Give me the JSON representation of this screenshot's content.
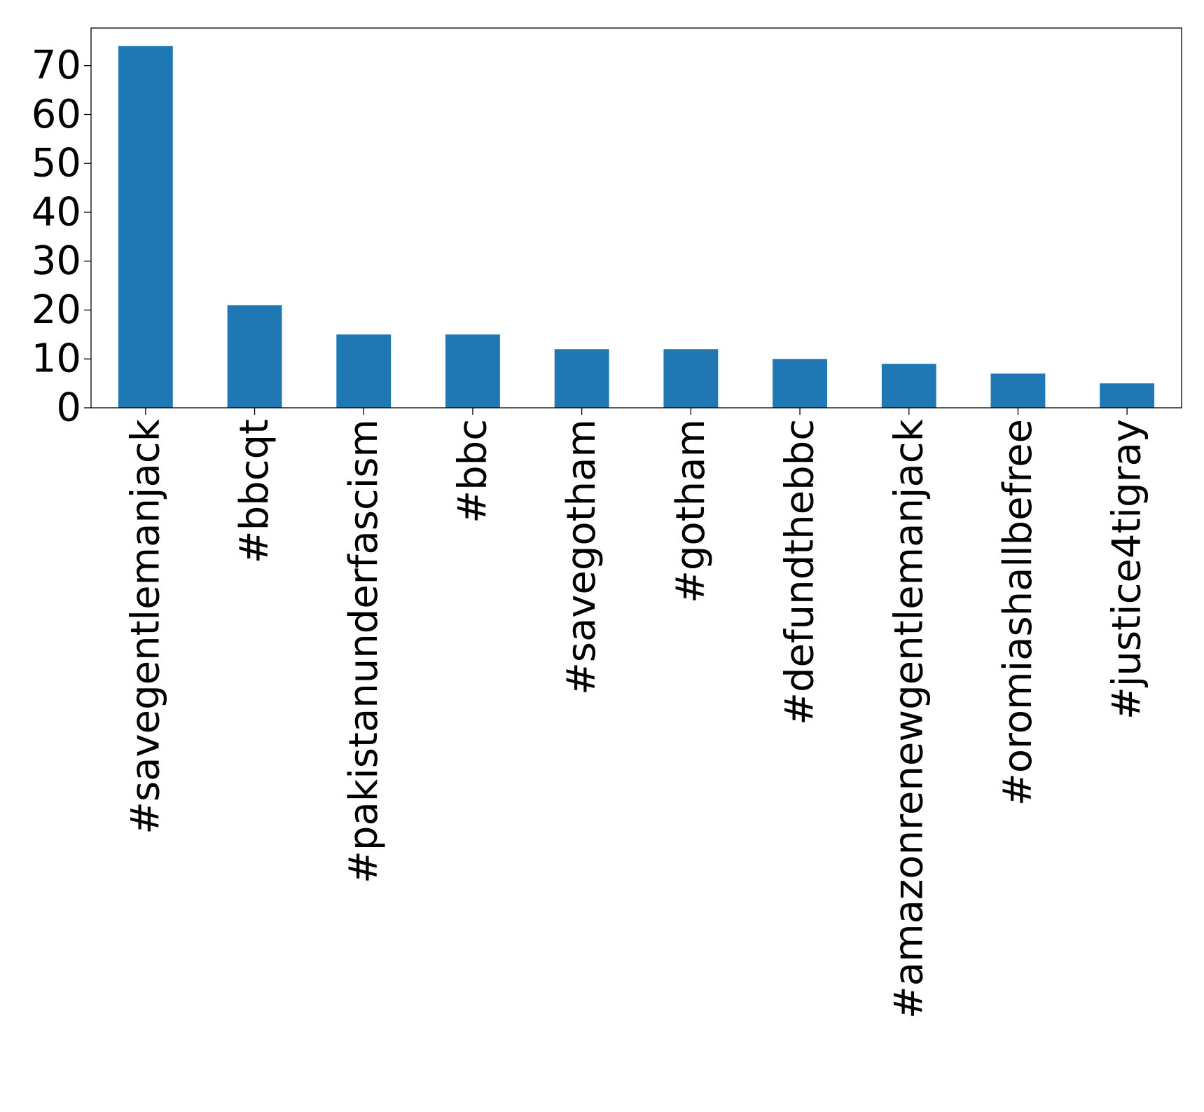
{
  "chart_data": {
    "type": "bar",
    "title": "",
    "xlabel": "",
    "ylabel": "",
    "categories": [
      "#savegentlemanjack",
      "#bbcqt",
      "#pakistanunderfascism",
      "#bbc",
      "#savegotham",
      "#gotham",
      "#defundthebbc",
      "#amazonrenewgentlemanjack",
      "#oromiashallbefree",
      "#justice4tigray"
    ],
    "values": [
      74,
      21,
      15,
      15,
      12,
      12,
      10,
      9,
      7,
      5
    ],
    "ylim": [
      0,
      77.7
    ],
    "yticks": [
      0,
      10,
      20,
      30,
      40,
      50,
      60,
      70
    ],
    "grid": false,
    "legend": "none",
    "bar_color": "#1f77b4",
    "axis_color": "#000000"
  }
}
